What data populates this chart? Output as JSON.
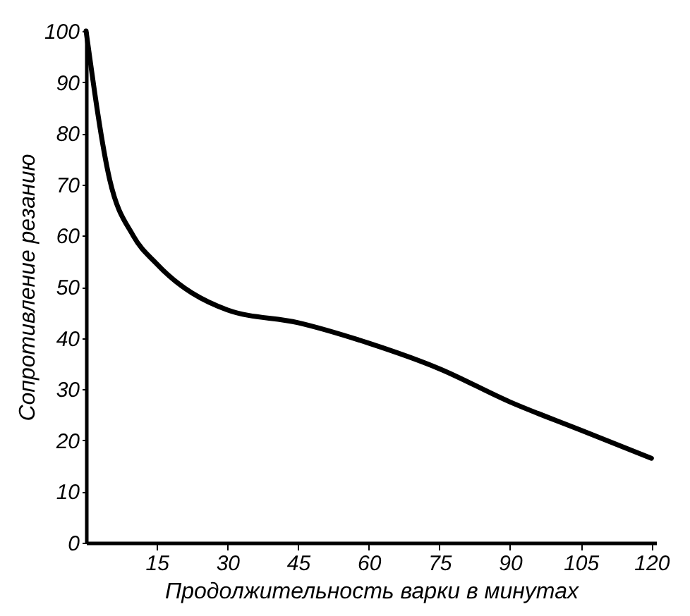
{
  "chart_data": {
    "type": "line",
    "xlabel": "Продолжительность варки в минутах",
    "ylabel": "Сопротивление резанию",
    "x": [
      0,
      5,
      10,
      15,
      30,
      45,
      60,
      75,
      90,
      105,
      120
    ],
    "series": [
      {
        "color": "#000000",
        "values": [
          100,
          71,
          60,
          54.5,
          45.5,
          43,
          39,
          34,
          27.5,
          22,
          16.5
        ]
      }
    ],
    "xlim": [
      0,
      121
    ],
    "xticks": [
      15,
      30,
      45,
      60,
      75,
      90,
      105,
      120
    ],
    "ylim": [
      0,
      100
    ],
    "yticks": [
      0,
      10,
      20,
      30,
      40,
      50,
      60,
      70,
      80,
      90,
      100
    ],
    "grid": false,
    "marker": "none",
    "line_style": "solid"
  }
}
